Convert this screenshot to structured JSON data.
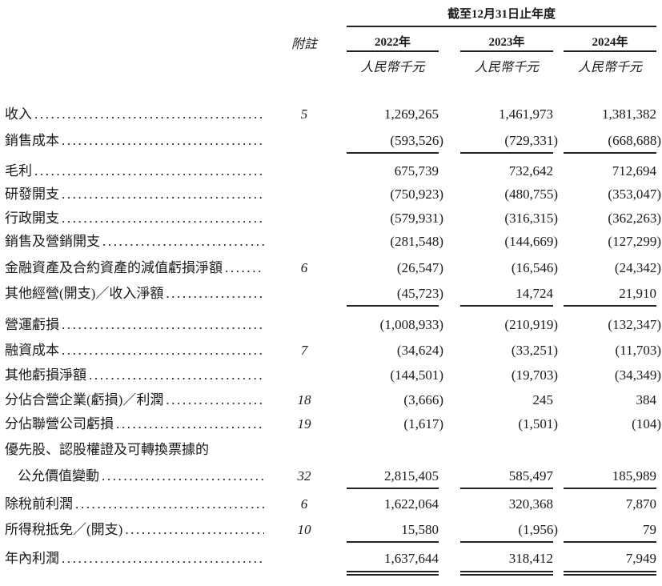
{
  "header": {
    "period": "截至12月31日止年度",
    "note_label": "附註",
    "years": [
      "2022年",
      "2023年",
      "2024年"
    ],
    "units": [
      "人民幣千元",
      "人民幣千元",
      "人民幣千元"
    ]
  },
  "rows": [
    {
      "label": "收入",
      "note": "5",
      "values": [
        "1,269,265",
        "1,461,973",
        "1,381,382"
      ]
    },
    {
      "label": "銷售成本",
      "note": "",
      "values": [
        "(593,526)",
        "(729,331)",
        "(668,688)"
      ],
      "rule_below": "single"
    },
    {
      "label": "毛利",
      "note": "",
      "values": [
        "675,739",
        "732,642",
        "712,694"
      ]
    },
    {
      "label": "研發開支",
      "note": "",
      "values": [
        "(750,923)",
        "(480,755)",
        "(353,047)"
      ]
    },
    {
      "label": "行政開支",
      "note": "",
      "values": [
        "(579,931)",
        "(316,315)",
        "(362,263)"
      ]
    },
    {
      "label": "銷售及營銷開支",
      "note": "",
      "values": [
        "(281,548)",
        "(144,669)",
        "(127,299)"
      ]
    },
    {
      "label": "金融資產及合約資產的減值虧損淨額",
      "note": "6",
      "values": [
        "(26,547)",
        "(16,546)",
        "(24,342)"
      ]
    },
    {
      "label": "其他經營(開支)／收入淨額",
      "note": "",
      "values": [
        "(45,723)",
        "14,724",
        "21,910"
      ],
      "rule_below": "single"
    },
    {
      "label": "營運虧損",
      "note": "",
      "values": [
        "(1,008,933)",
        "(210,919)",
        "(132,347)"
      ]
    },
    {
      "label": "融資成本",
      "note": "7",
      "values": [
        "(34,624)",
        "(33,251)",
        "(11,703)"
      ]
    },
    {
      "label": "其他虧損淨額",
      "note": "",
      "values": [
        "(144,501)",
        "(19,703)",
        "(34,349)"
      ]
    },
    {
      "label": "分佔合營企業(虧損)／利潤",
      "note": "18",
      "values": [
        "(3,666)",
        "245",
        "384"
      ]
    },
    {
      "label": "分佔聯營公司虧損",
      "note": "19",
      "values": [
        "(1,617)",
        "(1,501)",
        "(104)"
      ]
    },
    {
      "label": "優先股、認股權證及可轉換票據的",
      "note": "",
      "values": [],
      "no_dots": true
    },
    {
      "label": "公允價值變動",
      "note": "32",
      "values": [
        "2,815,405",
        "585,497",
        "185,989"
      ],
      "indent": true,
      "rule_below": "single"
    },
    {
      "label": "除稅前利潤",
      "note": "6",
      "values": [
        "1,622,064",
        "320,368",
        "7,870"
      ]
    },
    {
      "label": "所得稅抵免／(開支)",
      "note": "10",
      "values": [
        "15,580",
        "(1,956)",
        "79"
      ],
      "rule_below": "single"
    },
    {
      "label": "年內利潤",
      "note": "",
      "values": [
        "1,637,644",
        "318,412",
        "7,949"
      ],
      "rule_below": "double"
    }
  ]
}
